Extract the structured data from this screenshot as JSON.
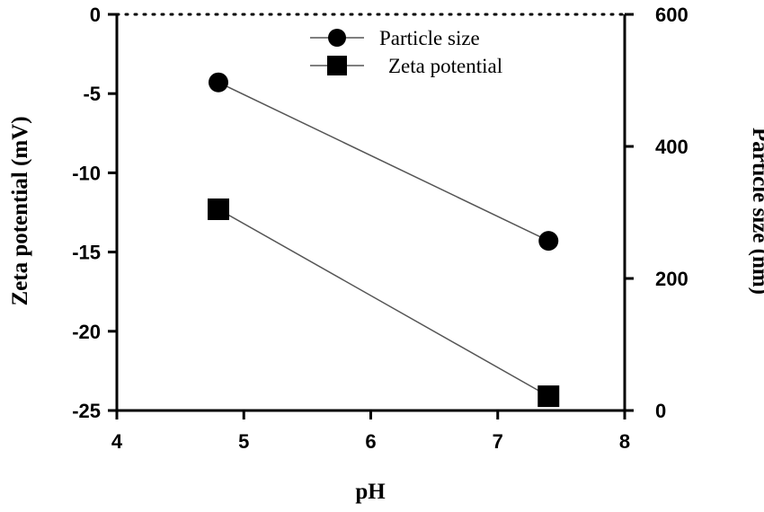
{
  "chart_data": {
    "type": "line",
    "title": "",
    "xlabel": "pH",
    "ylabel_left": "Zeta potential (mV)",
    "ylabel_right": "Particle size (nm)",
    "xlim": [
      4,
      8
    ],
    "ylim_left": [
      -25,
      0
    ],
    "ylim_right": [
      0,
      600
    ],
    "x_ticks": [
      "4",
      "5",
      "6",
      "7",
      "8"
    ],
    "y_left_ticks": [
      "0",
      "-5",
      "-10",
      "-15",
      "-20",
      "-25"
    ],
    "y_right_ticks": [
      "600",
      "400",
      "200",
      "0"
    ],
    "zero_line": "dotted",
    "grid": false,
    "legend_position": "top-center",
    "series": [
      {
        "name": "Particle size",
        "axis": "right",
        "marker": "circle",
        "color": "#000000",
        "x": [
          4.8,
          7.4
        ],
        "y": [
          497,
          257
        ]
      },
      {
        "name": "Zeta potential",
        "axis": "left",
        "marker": "square",
        "color": "#000000",
        "x": [
          4.8,
          7.4
        ],
        "y": [
          -12.3,
          -24.1
        ]
      }
    ]
  }
}
